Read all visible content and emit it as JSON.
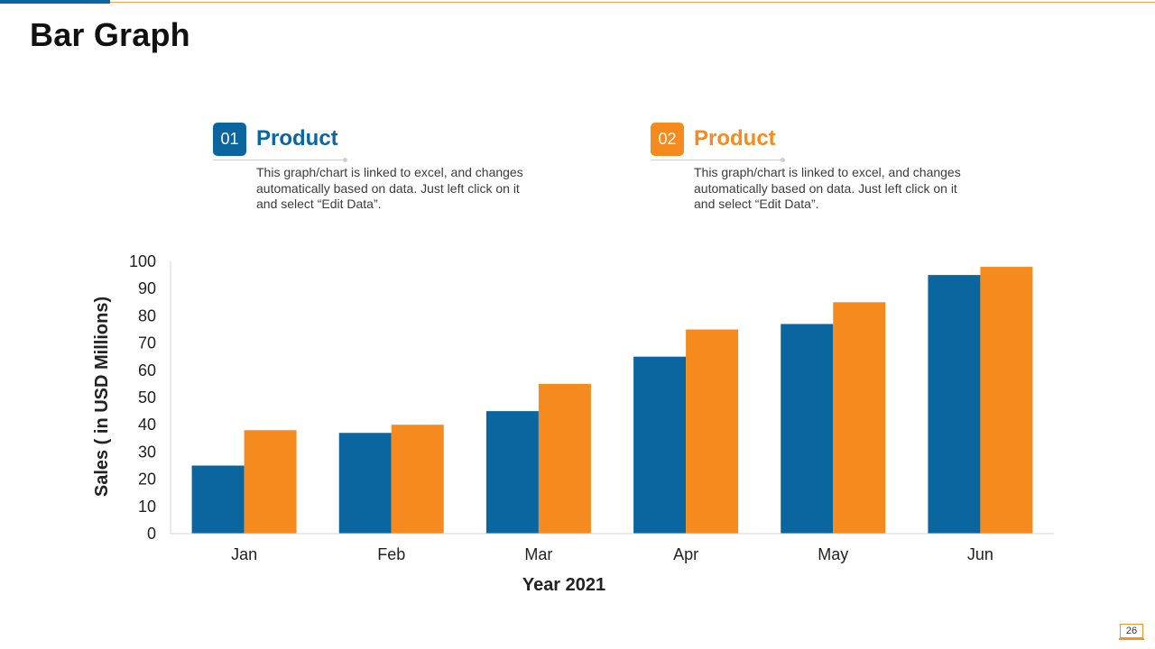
{
  "slide": {
    "title": "Bar Graph",
    "page_number": "26",
    "colors": {
      "accent_blue": "#0b66a0",
      "accent_orange": "#f58a1f"
    }
  },
  "legend": [
    {
      "number": "01",
      "name": "Product",
      "description": "This graph/chart is linked to excel, and changes automatically based on data. Just left click on it and select “Edit Data”.",
      "color": "#0b66a0"
    },
    {
      "number": "02",
      "name": "Product",
      "description": "This graph/chart is linked to excel, and changes automatically based on data. Just left click on it and select “Edit Data”.",
      "color": "#f58a1f"
    }
  ],
  "chart_data": {
    "type": "bar",
    "categories": [
      "Jan",
      "Feb",
      "Mar",
      "Apr",
      "May",
      "Jun"
    ],
    "series": [
      {
        "values": [
          25,
          37,
          45,
          65,
          77,
          95
        ],
        "color": "#0b66a0"
      },
      {
        "values": [
          38,
          40,
          55,
          75,
          85,
          98
        ],
        "color": "#f58a1f"
      }
    ],
    "xlabel": "Year 2021",
    "ylabel": "Sales ( in USD Millions)",
    "ylim": [
      0,
      100
    ],
    "yticks": [
      0,
      10,
      20,
      30,
      40,
      50,
      60,
      70,
      80,
      90,
      100
    ],
    "grid": false,
    "legend_position": "top"
  }
}
